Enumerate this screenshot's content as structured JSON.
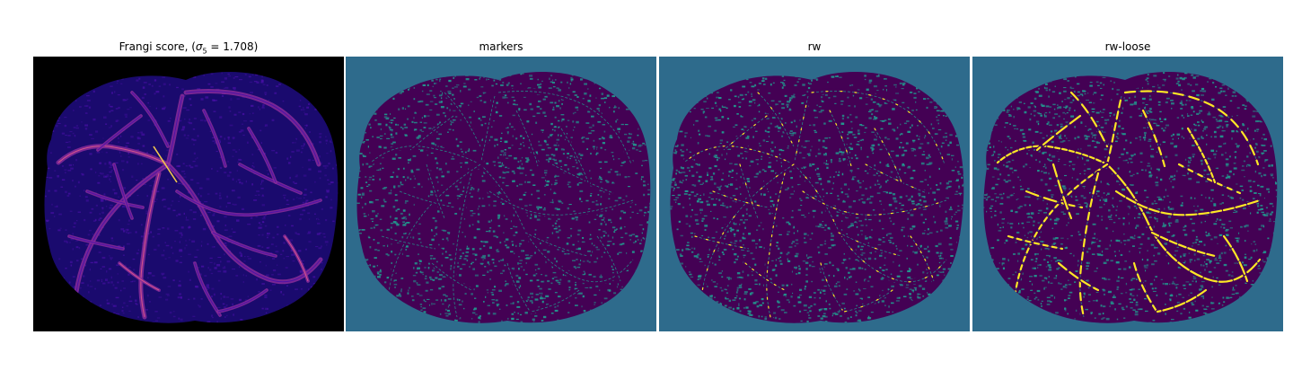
{
  "figure": {
    "panels": [
      {
        "id": "frangi",
        "title_prefix": "Frangi score, (",
        "title_symbol": "σ",
        "title_subscript": "5",
        "title_suffix": " = 1.708)",
        "colormap": "magma",
        "colors": {
          "background": "#000000",
          "tissue": "#1a0a6e",
          "vessel_low": "#4a10a8",
          "vessel_mid": "#8a2c9a",
          "vessel_high": "#e05a8a",
          "vessel_peak": "#f3c84e"
        }
      },
      {
        "id": "markers",
        "title": "markers",
        "colormap": "viridis",
        "colors": {
          "background": "#2e6b8c",
          "tissue": "#440154",
          "marker": "#22968d"
        }
      },
      {
        "id": "rw",
        "title": "rw",
        "colormap": "viridis",
        "colors": {
          "background": "#2e6b8c",
          "tissue": "#440154",
          "marker": "#22968d",
          "segmented": "#fde725"
        }
      },
      {
        "id": "rw-loose",
        "title": "rw-loose",
        "colormap": "viridis",
        "colors": {
          "background": "#2e6b8c",
          "tissue": "#440154",
          "marker": "#22968d",
          "segmented": "#fde725"
        }
      }
    ]
  }
}
